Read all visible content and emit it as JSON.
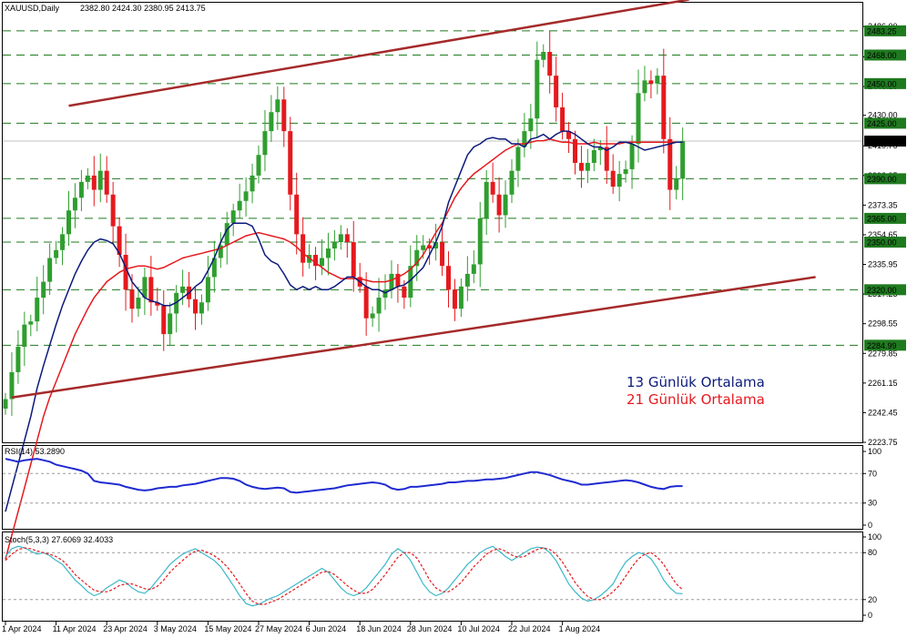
{
  "header": {
    "symbol_line": "XAUUSD,Daily",
    "ohlc": "2382.80 2424.30 2380.95 2413.75",
    "rsi_label": "RSI(14) 53.2890",
    "stoch_label": "Stoch(5,3,3) 27.6069 32.4033"
  },
  "colors": {
    "bull": "#2f9e2f",
    "bear": "#e5191e",
    "ma13": "#0c1a7a",
    "ma21": "#e5191e",
    "channel": "#a52a2a",
    "level": "#1f7a1f",
    "rsi": "#1f2bd0",
    "stoch_main": "#3cb8c8",
    "stoch_signal": "#e5191e"
  },
  "legend": {
    "ma13": "13 Günlük Ortalama",
    "ma21": "21 Günlük Ortalama"
  },
  "chart_data": [
    {
      "type": "candlestick",
      "title": "XAUUSD,Daily",
      "ylim": [
        2223.75,
        2501
      ],
      "y_ticks": [
        "2223.75",
        "2242.45",
        "2261.15",
        "2279.85",
        "2298.55",
        "2317.25",
        "2335.95",
        "2354.65",
        "2373.35",
        "2392.05",
        "2410.75",
        "2430.00",
        "2448.15",
        "2466.85",
        "2486.00"
      ],
      "levels": [
        {
          "label": "2483.25",
          "value": 2483.25
        },
        {
          "label": "2468.00",
          "value": 2468.0
        },
        {
          "label": "2450.00",
          "value": 2450.0
        },
        {
          "label": "2425.00",
          "value": 2425.0
        },
        {
          "label": "2390.00",
          "value": 2390.0
        },
        {
          "label": "2365.00",
          "value": 2365.0
        },
        {
          "label": "2350.00",
          "value": 2350.0
        },
        {
          "label": "2320.00",
          "value": 2320.0
        },
        {
          "label": "2284.99",
          "value": 2284.99
        }
      ],
      "current_price": {
        "label": "2413.75",
        "value": 2413.75
      },
      "x_labels": [
        {
          "label": "1 Apr 2024",
          "index": 0
        },
        {
          "label": "11 Apr 2024",
          "index": 8
        },
        {
          "label": "23 Apr 2024",
          "index": 16
        },
        {
          "label": "3 May 2024",
          "index": 24
        },
        {
          "label": "15 May 2024",
          "index": 32
        },
        {
          "label": "27 May 2024",
          "index": 40
        },
        {
          "label": "6 Jun 2024",
          "index": 48
        },
        {
          "label": "18 Jun 2024",
          "index": 56
        },
        {
          "label": "28 Jun 2024",
          "index": 64
        },
        {
          "label": "10 Jul 2024",
          "index": 72
        },
        {
          "label": "22 Jul 2024",
          "index": 80
        },
        {
          "label": "1 Aug 2024",
          "index": 88
        }
      ],
      "close": [
        2251,
        2268,
        2284,
        2298,
        2300,
        2315,
        2325,
        2340,
        2345,
        2355,
        2370,
        2378,
        2388,
        2392,
        2383,
        2395,
        2380,
        2360,
        2342,
        2320,
        2308,
        2315,
        2328,
        2312,
        2310,
        2292,
        2305,
        2318,
        2322,
        2314,
        2305,
        2312,
        2328,
        2340,
        2348,
        2362,
        2370,
        2376,
        2382,
        2392,
        2405,
        2420,
        2432,
        2440,
        2420,
        2380,
        2355,
        2337,
        2342,
        2335,
        2340,
        2346,
        2350,
        2355,
        2350,
        2328,
        2322,
        2302,
        2305,
        2315,
        2320,
        2330,
        2322,
        2315,
        2335,
        2345,
        2348,
        2346,
        2350,
        2335,
        2320,
        2308,
        2322,
        2330,
        2336,
        2365,
        2388,
        2380,
        2367,
        2380,
        2395,
        2410,
        2420,
        2428,
        2465,
        2470,
        2455,
        2435,
        2420,
        2415,
        2400,
        2395,
        2400,
        2408,
        2410,
        2395,
        2385,
        2393,
        2396,
        2412,
        2444,
        2452,
        2450,
        2455,
        2415,
        2383,
        2390,
        2413.75
      ],
      "ma13": [
        2180,
        2195,
        2210,
        2225,
        2240,
        2258,
        2272,
        2285,
        2298,
        2310,
        2320,
        2330,
        2338,
        2345,
        2350,
        2352,
        2351,
        2349,
        2343,
        2334,
        2325,
        2320,
        2315,
        2313,
        2312,
        2310,
        2310,
        2312,
        2315,
        2318,
        2322,
        2325,
        2332,
        2340,
        2350,
        2358,
        2362,
        2362,
        2362,
        2360,
        2352,
        2342,
        2338,
        2336,
        2330,
        2323,
        2320,
        2322,
        2320,
        2322,
        2320,
        2320,
        2322,
        2325,
        2328,
        2328,
        2325,
        2322,
        2320,
        2320,
        2318,
        2320,
        2322,
        2323,
        2326,
        2330,
        2334,
        2342,
        2350,
        2360,
        2375,
        2385,
        2395,
        2405,
        2410,
        2412,
        2415,
        2416,
        2415,
        2415,
        2412,
        2412,
        2410,
        2415,
        2416,
        2418,
        2415,
        2418,
        2420,
        2420,
        2418,
        2415,
        2412,
        2410,
        2410,
        2408,
        2410,
        2413,
        2413,
        2412,
        2410,
        2408,
        2409,
        2410,
        2411,
        2412,
        2413,
        2413
      ],
      "ma21": [
        2150,
        2165,
        2180,
        2195,
        2210,
        2225,
        2240,
        2252,
        2262,
        2272,
        2282,
        2292,
        2300,
        2308,
        2315,
        2320,
        2325,
        2328,
        2331,
        2333,
        2334,
        2335,
        2335,
        2334,
        2333,
        2334,
        2336,
        2338,
        2340,
        2341,
        2342,
        2343,
        2344,
        2345,
        2346,
        2348,
        2350,
        2352,
        2354,
        2355,
        2356,
        2355,
        2354,
        2353,
        2352,
        2350,
        2347,
        2343,
        2340,
        2337,
        2334,
        2331,
        2329,
        2327,
        2327,
        2327,
        2327,
        2326,
        2325,
        2325,
        2325,
        2326,
        2328,
        2330,
        2333,
        2337,
        2342,
        2349,
        2356,
        2362,
        2370,
        2378,
        2384,
        2389,
        2393,
        2396,
        2399,
        2402,
        2405,
        2408,
        2410,
        2412,
        2412,
        2413,
        2414,
        2414,
        2415,
        2414,
        2413,
        2413,
        2412,
        2412,
        2412,
        2413,
        2412,
        2412,
        2412,
        2412,
        2413,
        2413,
        2413,
        2413,
        2413,
        2413,
        2413,
        2413,
        2413,
        2413
      ],
      "channel_upper": {
        "from": {
          "index": 10,
          "value": 2436
        },
        "to": {
          "index": 108,
          "value": 2503
        }
      },
      "channel_lower": {
        "from": {
          "index": 1,
          "value": 2252
        },
        "to": {
          "index": 128,
          "value": 2328
        }
      }
    },
    {
      "type": "line",
      "title": "RSI(14) 53.2890",
      "ylim": [
        0,
        100
      ],
      "y_ticks": [
        "100",
        "70",
        "30",
        "0"
      ],
      "levels": [
        70,
        30
      ],
      "rsi": [
        90,
        88,
        86,
        88,
        89,
        90,
        88,
        86,
        82,
        80,
        78,
        76,
        74,
        70,
        60,
        58,
        57,
        56,
        55,
        52,
        50,
        48,
        47,
        48,
        50,
        51,
        52,
        52,
        54,
        55,
        56,
        58,
        60,
        62,
        64,
        64,
        63,
        60,
        55,
        52,
        50,
        49,
        50,
        51,
        50,
        45,
        44,
        45,
        46,
        47,
        48,
        49,
        50,
        52,
        54,
        55,
        56,
        57,
        58,
        57,
        55,
        50,
        48,
        49,
        52,
        52,
        53,
        54,
        55,
        56,
        58,
        58,
        59,
        60,
        60,
        61,
        62,
        62,
        63,
        64,
        66,
        68,
        70,
        72,
        72,
        70,
        68,
        65,
        62,
        60,
        58,
        55,
        55,
        56,
        57,
        58,
        59,
        60,
        61,
        60,
        58,
        55,
        52,
        50,
        49,
        52,
        53,
        53
      ]
    },
    {
      "type": "line",
      "title": "Stoch(5,3,3) 27.6069 32.4033",
      "ylim": [
        0,
        100
      ],
      "y_ticks": [
        "100",
        "80",
        "20",
        "0"
      ],
      "levels": [
        80,
        20
      ],
      "main": [
        75,
        85,
        88,
        86,
        82,
        78,
        80,
        76,
        70,
        65,
        55,
        45,
        38,
        30,
        25,
        28,
        35,
        40,
        45,
        42,
        35,
        30,
        28,
        35,
        45,
        55,
        65,
        72,
        78,
        82,
        85,
        80,
        75,
        70,
        62,
        50,
        38,
        25,
        15,
        12,
        14,
        18,
        22,
        25,
        30,
        35,
        40,
        45,
        50,
        55,
        60,
        55,
        45,
        35,
        28,
        25,
        28,
        35,
        45,
        55,
        65,
        78,
        85,
        80,
        70,
        55,
        40,
        30,
        25,
        28,
        35,
        45,
        55,
        65,
        72,
        80,
        85,
        88,
        82,
        75,
        70,
        75,
        80,
        85,
        87,
        86,
        80,
        70,
        55,
        40,
        30,
        22,
        18,
        20,
        25,
        32,
        40,
        55,
        68,
        75,
        80,
        78,
        72,
        60,
        45,
        35,
        28,
        27.6
      ],
      "signal": [
        70,
        78,
        84,
        86,
        85,
        82,
        80,
        78,
        75,
        70,
        62,
        52,
        45,
        38,
        32,
        30,
        30,
        33,
        38,
        40,
        40,
        37,
        34,
        33,
        37,
        45,
        55,
        63,
        70,
        77,
        82,
        83,
        80,
        76,
        70,
        62,
        52,
        40,
        28,
        18,
        14,
        14,
        17,
        20,
        25,
        30,
        35,
        40,
        45,
        50,
        55,
        56,
        52,
        45,
        38,
        32,
        28,
        28,
        33,
        42,
        52,
        63,
        74,
        80,
        80,
        73,
        60,
        45,
        35,
        30,
        30,
        35,
        42,
        52,
        62,
        70,
        78,
        83,
        85,
        82,
        77,
        74,
        75,
        80,
        84,
        86,
        84,
        78,
        68,
        55,
        42,
        32,
        24,
        20,
        20,
        24,
        30,
        38,
        50,
        62,
        72,
        78,
        80,
        74,
        65,
        52,
        40,
        32.4
      ]
    }
  ]
}
